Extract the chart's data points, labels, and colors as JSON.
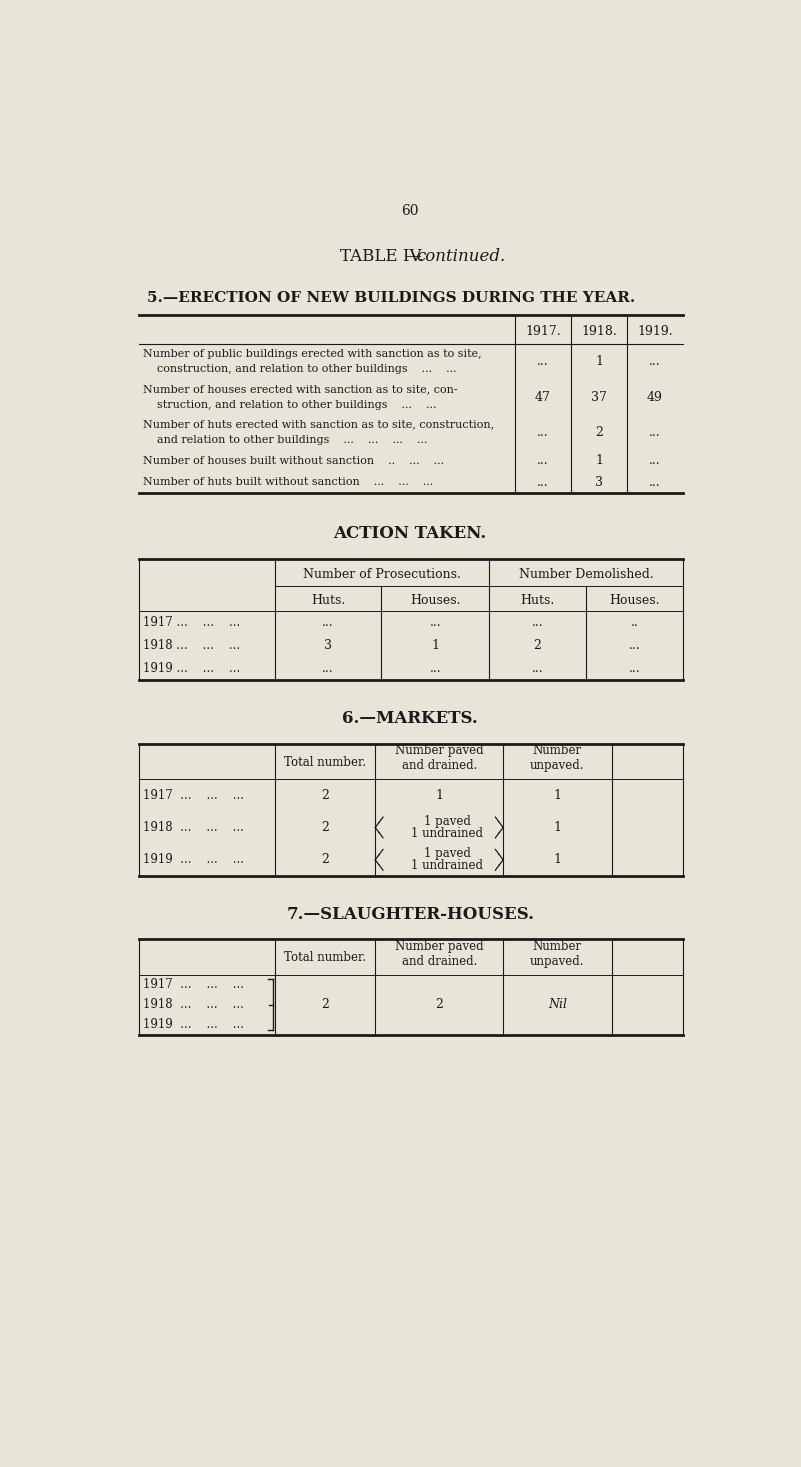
{
  "bg_color": "#e8e4d8",
  "text_color": "#1a1a1a",
  "page_number": "60",
  "table_title_plain": "TABLE IV.",
  "table_title_italic": "continued.",
  "section5_title": "5.—ERECTION OF NEW BUILDINGS DURING THE YEAR.",
  "section5_col_headers": [
    "1917.",
    "1918.",
    "1919."
  ],
  "section5_rows": [
    {
      "line1": "Number of public buildings erected with sanction as to site,",
      "line2": "    construction, and relation to other buildings    ...    ...",
      "vals": [
        "...",
        "1",
        "..."
      ]
    },
    {
      "line1": "Number of houses erected with sanction as to site, con-",
      "line2": "    struction, and relation to other buildings    ...    ...",
      "vals": [
        "47",
        "37",
        "49"
      ]
    },
    {
      "line1": "Number of huts erected with sanction as to site, construction,",
      "line2": "    and relation to other buildings    ...    ...    ...    ...",
      "vals": [
        "...",
        "2",
        "..."
      ]
    },
    {
      "line1": "Number of houses built without sanction    ..    ...    ...",
      "line2": null,
      "vals": [
        "...",
        "1",
        "..."
      ]
    },
    {
      "line1": "Number of huts built without sanction    ...    ...    ...",
      "line2": null,
      "vals": [
        "...",
        "3",
        "..."
      ]
    }
  ],
  "action_title": "ACTION TAKEN.",
  "action_col1_header": "Number of Prosecutions.",
  "action_col2_header": "Number Demolished.",
  "action_sub_headers": [
    "Huts.",
    "Houses.",
    "Huts.",
    "Houses."
  ],
  "action_rows": [
    {
      "year": "1917 ...    ...    ...",
      "vals": [
        "...",
        "...",
        "...",
        ".."
      ]
    },
    {
      "year": "1918 ...    ...    ...",
      "vals": [
        "3",
        "1",
        "2",
        "..."
      ]
    },
    {
      "year": "1919 ...    ...    ...",
      "vals": [
        "...",
        "...",
        "...",
        "..."
      ]
    }
  ],
  "markets_title": "6.—MARKETS.",
  "markets_col_headers": [
    "Total number.",
    "Number paved\nand drained.",
    "Number\nunpaved."
  ],
  "markets_rows": [
    {
      "year": "1917  ...    ...    ...",
      "total": "2",
      "paved_drained": "1",
      "unpaved": "1",
      "two_line": false
    },
    {
      "year": "1918  ...    ...    ...",
      "total": "2",
      "pd_line1": "1 paved",
      "pd_line2": "1 undrained",
      "unpaved": "1",
      "two_line": true
    },
    {
      "year": "1919  ...    ...    ...",
      "total": "2",
      "pd_line1": "1 paved",
      "pd_line2": "1 undrained",
      "unpaved": "1",
      "two_line": true
    }
  ],
  "slaughter_title": "7.—SLAUGHTER-HOUSES.",
  "slaughter_col_headers": [
    "Total number.",
    "Number paved\nand drained.",
    "Number\nunpaved."
  ],
  "slaughter_years": [
    "1917  ...    ...    ...",
    "1918  ...    ...    ...",
    "1919  ...    ...    ..."
  ],
  "slaughter_total": "2",
  "slaughter_paved": "2",
  "slaughter_unpaved": "Nil"
}
